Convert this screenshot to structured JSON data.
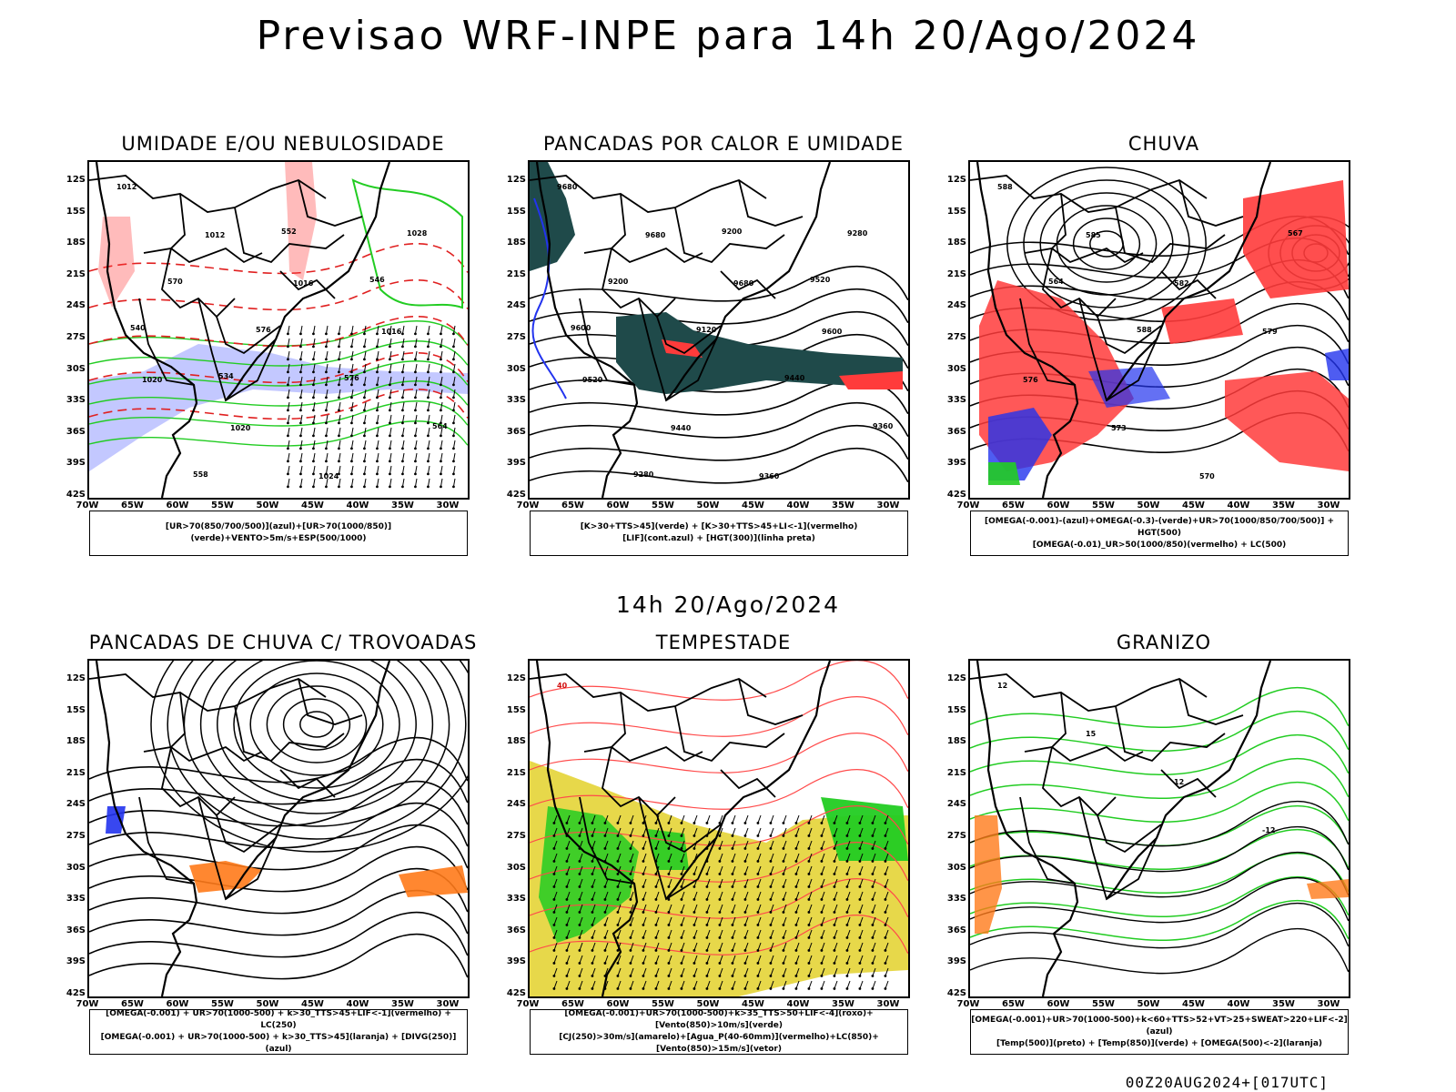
{
  "title": "Previsao WRF-INPE  para 14h 20/Ago/2024",
  "subtitle": "14h 20/Ago/2024",
  "footer": "00Z20AUG2024+[017UTC]",
  "lat_labels": [
    "12S",
    "15S",
    "18S",
    "21S",
    "24S",
    "27S",
    "30S",
    "33S",
    "36S",
    "39S",
    "42S"
  ],
  "lon_labels": [
    "70W",
    "65W",
    "60W",
    "55W",
    "50W",
    "45W",
    "40W",
    "35W",
    "30W"
  ],
  "panels": [
    {
      "id": "umidade",
      "title": "UMIDADE E/OU NEBULOSIDADE",
      "legend": [
        "[UR>70(850/700/500)](azul)+[UR>70(1000/850)](verde)+VENTO>5m/s+ESP(500/1000)"
      ],
      "contour_labels": [
        "1012",
        "1012",
        "1016",
        "1016",
        "1020",
        "1020",
        "1024",
        "1028",
        "570",
        "576",
        "576",
        "564",
        "558",
        "552",
        "546",
        "540",
        "534"
      ]
    },
    {
      "id": "pancadas",
      "title": "PANCADAS POR CALOR E UMIDADE",
      "legend": [
        "[K>30+TTS>45](verde) + [K>30+TTS>45+LI<-1](vermelho)",
        "[LIF](cont.azul) + [HGT(300)](linha preta)"
      ],
      "contour_labels": [
        "9680",
        "9680",
        "9680",
        "9600",
        "9520",
        "9440",
        "9360",
        "9280",
        "9200",
        "9120",
        "9440",
        "9360",
        "9280",
        "9200",
        "9520",
        "9600"
      ]
    },
    {
      "id": "chuva",
      "title": "CHUVA",
      "legend": [
        "[OMEGA(-0.001)-(azul)+OMEGA(-0.3)-(verde)+UR>70(1000/850/700/500)] + HGT(500)",
        "[OMEGA(-0.01)_UR>50(1000/850)(vermelho) + LC(500)"
      ],
      "contour_labels": [
        "588",
        "585",
        "582",
        "579",
        "576",
        "573",
        "570",
        "567",
        "564",
        "588"
      ]
    },
    {
      "id": "trovoadas",
      "title": "PANCADAS DE CHUVA C/ TROVOADAS",
      "legend": [
        "[OMEGA(-0.001) + UR>70(1000-500) + k>30_TTS>45+LIF<-1](vermelho) + LC(250)",
        "[OMEGA(-0.001) + UR>70(1000-500) + k>30_TTS>45](laranja) + [DIVG(250)](azul)"
      ],
      "contour_labels": []
    },
    {
      "id": "tempestade",
      "title": "TEMPESTADE",
      "legend": [
        "[OMEGA(-0.001)+UR>70(1000-500)+k>35_TTS>50+LIF<-4](roxo)+[Vento(850)>10m/s](verde)",
        "[CJ(250)>30m/s](amarelo)+[Agua_P(40-60mm)](vermelho)+LC(850)+[Vento(850)>15m/s](vetor)"
      ],
      "contour_labels": [
        "40"
      ]
    },
    {
      "id": "granizo",
      "title": "GRANIZO",
      "legend": [
        "[OMEGA(-0.001)+UR>70(1000-500)+k<60+TTS>52+VT>25+SWEAT>220+LIF<-2](azul)",
        "[Temp(500)](preto) + [Temp(850)](verde) + [OMEGA(500)<-2](laranja)"
      ],
      "contour_labels": [
        "12",
        "15",
        "12",
        "-12"
      ]
    }
  ],
  "colors": {
    "red": "#ff3b3b",
    "green": "#22cc22",
    "blue": "#2233ee",
    "lightblue": "#aab0ff",
    "yellow": "#e6d640",
    "darkteal": "#1f4a4a",
    "orange": "#ff7a1a"
  }
}
